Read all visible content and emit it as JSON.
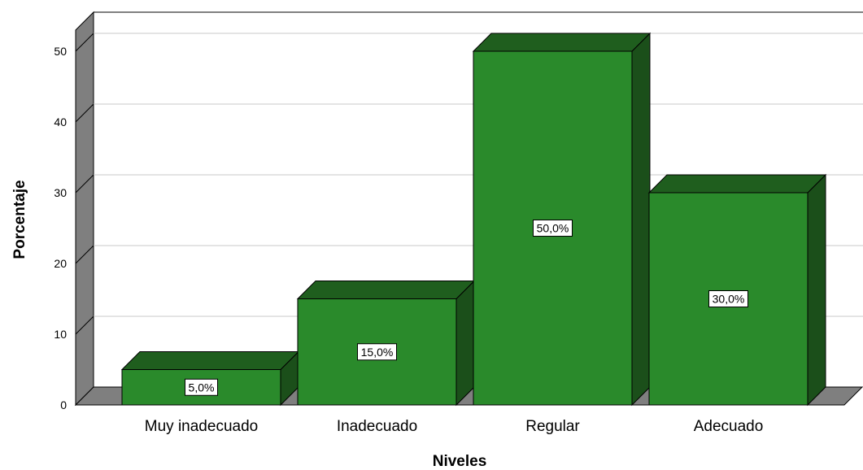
{
  "chart_data": {
    "type": "bar",
    "categories": [
      "Muy inadecuado",
      "Inadecuado",
      "Regular",
      "Adecuado"
    ],
    "values": [
      5.0,
      15.0,
      50.0,
      30.0
    ],
    "data_labels": [
      "5,0%",
      "15,0%",
      "50,0%",
      "30,0%"
    ],
    "title": "",
    "xlabel": "Niveles",
    "ylabel": "Porcentaje",
    "ylim": [
      0,
      53
    ],
    "yticks": [
      0,
      10,
      20,
      30,
      40,
      50
    ],
    "grid": true,
    "style": "3d",
    "colors": {
      "bar_front": "#2a8a2b",
      "bar_top": "#1f5e1e",
      "bar_side": "#1b4f1a",
      "wall": "#7f7f7f",
      "gridline": "#c8c8c8"
    }
  }
}
